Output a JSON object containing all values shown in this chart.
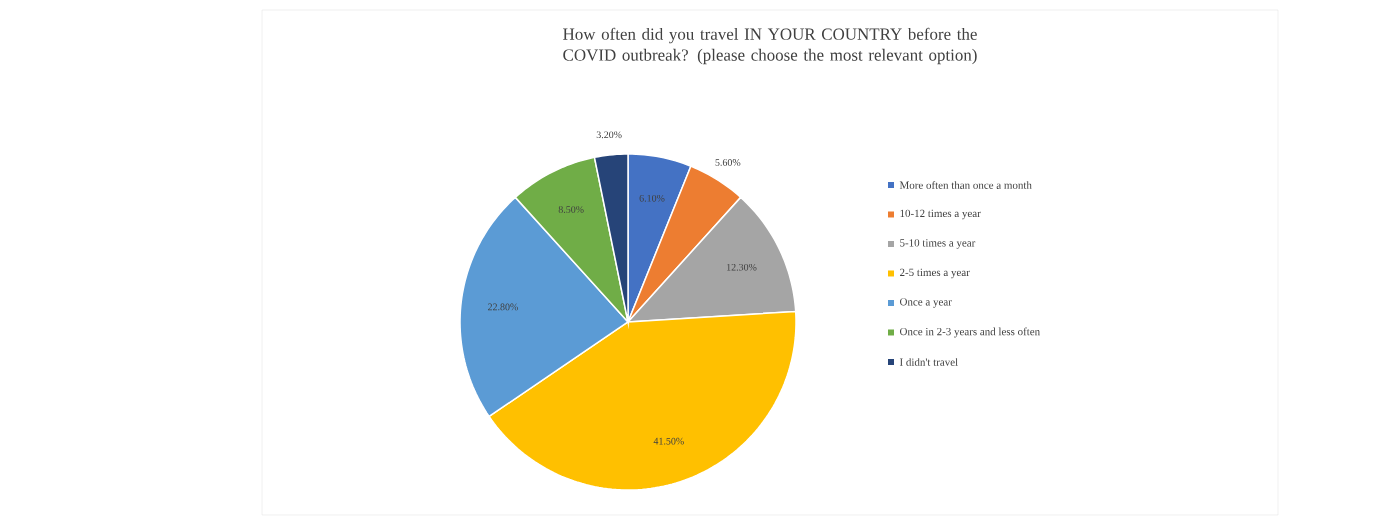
{
  "chart_data": {
    "type": "pie",
    "title": "How often did you travel IN YOUR COUNTRY before the COVID outbreak? (please choose the most relevant option)",
    "categories": [
      "More often than once a month",
      "10-12 times a year",
      "5-10 times a year",
      "2-5 times a year",
      "Once a year",
      "Once in 2-3 years and less often",
      "I didn't travel"
    ],
    "values": [
      6.1,
      5.6,
      12.3,
      41.5,
      22.8,
      8.5,
      3.2
    ],
    "value_labels": [
      "6.10%",
      "5.60%",
      "12.30%",
      "41.50%",
      "22.80%",
      "8.50%",
      "3.20%"
    ],
    "colors": [
      "#4472c4",
      "#ed7d31",
      "#a5a5a5",
      "#ffc000",
      "#5b9bd5",
      "#70ad47",
      "#264478"
    ],
    "legend": "right"
  }
}
